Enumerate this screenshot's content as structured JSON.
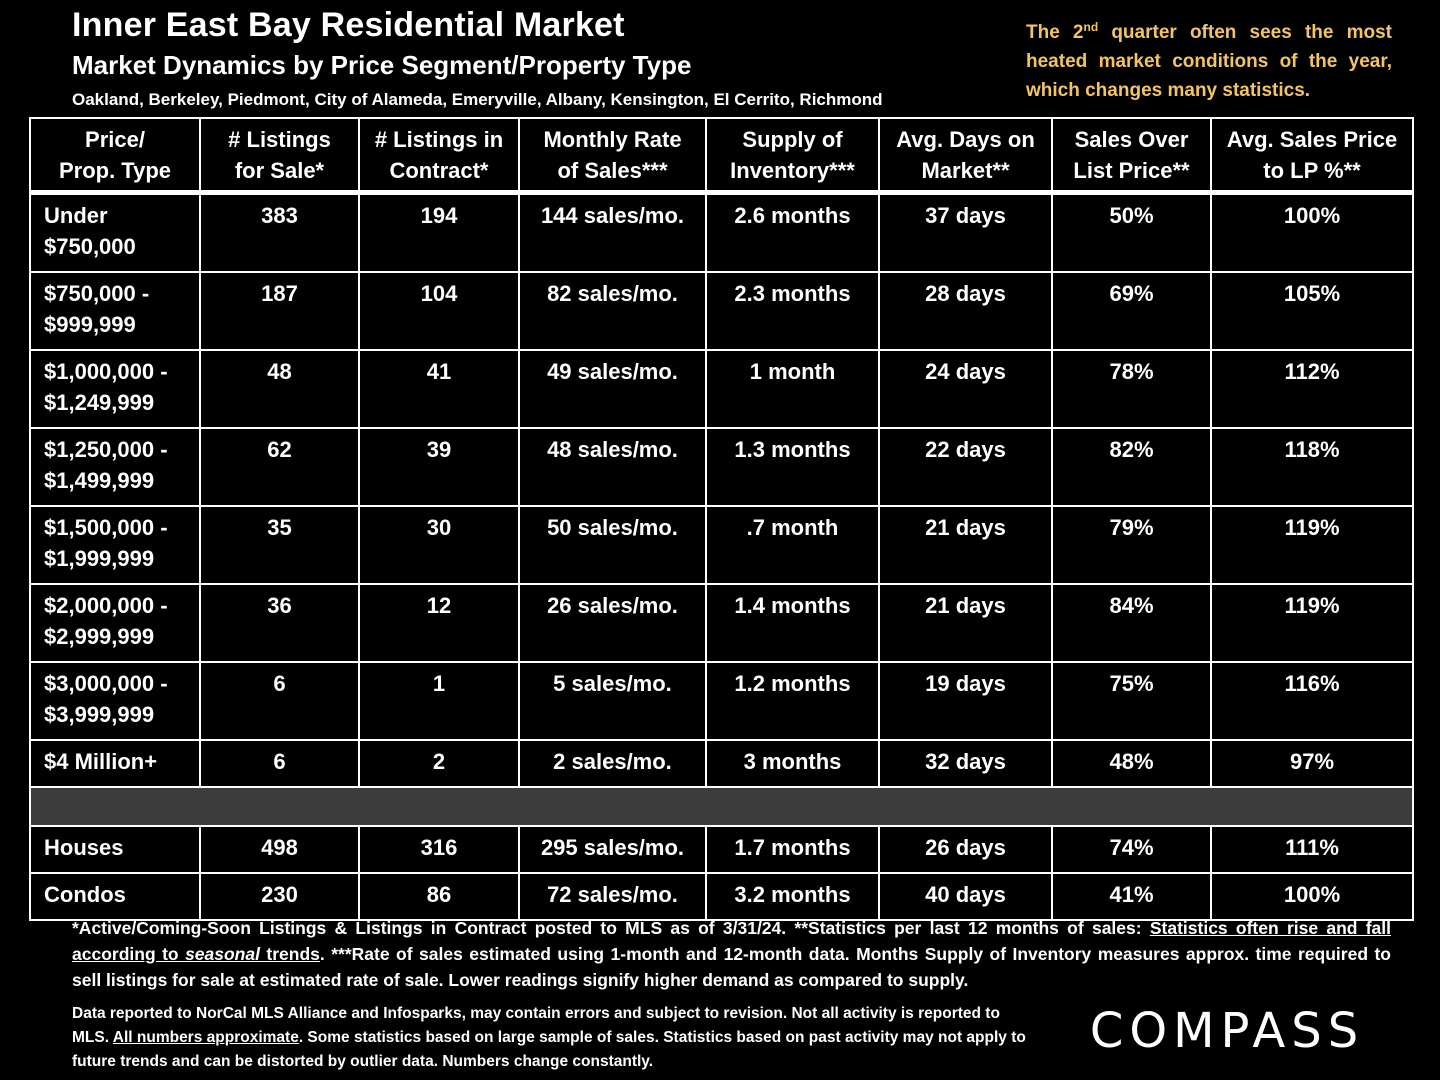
{
  "header": {
    "title": "Inner East Bay Residential Market",
    "subtitle": "Market Dynamics by Price Segment/Property Type",
    "cities": "Oakland, Berkeley, Piedmont, City of Alameda, Emeryville, Albany, Kensington, El Cerrito, Richmond"
  },
  "note": {
    "pre": "The 2",
    "sup": "nd",
    "post": " quarter often sees the most heated market conditions of the year, which changes many statistics."
  },
  "table": {
    "headers": [
      [
        "Price/",
        "Prop. Type"
      ],
      [
        "# Listings",
        "for Sale*"
      ],
      [
        "# Listings in",
        "Contract*"
      ],
      [
        "Monthly Rate",
        "of Sales***"
      ],
      [
        "Supply of",
        "Inventory***"
      ],
      [
        "Avg. Days on",
        "Market**"
      ],
      [
        "Sales Over",
        "List Price**"
      ],
      [
        "Avg. Sales Price",
        "to LP %**"
      ]
    ],
    "segments": [
      {
        "label": [
          "Under",
          "$750,000"
        ],
        "listings": "383",
        "contract": "194",
        "rate": "144 sales/mo.",
        "supply": "2.6 months",
        "dom": "37 days",
        "over": "50%",
        "lp": "100%"
      },
      {
        "label": [
          "$750,000 -",
          "$999,999"
        ],
        "listings": "187",
        "contract": "104",
        "rate": "82 sales/mo.",
        "supply": "2.3 months",
        "dom": "28 days",
        "over": "69%",
        "lp": "105%"
      },
      {
        "label": [
          "$1,000,000 -",
          "$1,249,999"
        ],
        "listings": "48",
        "contract": "41",
        "rate": "49 sales/mo.",
        "supply": "1 month",
        "dom": "24 days",
        "over": "78%",
        "lp": "112%"
      },
      {
        "label": [
          "$1,250,000 -",
          "$1,499,999"
        ],
        "listings": "62",
        "contract": "39",
        "rate": "48 sales/mo.",
        "supply": "1.3 months",
        "dom": "22 days",
        "over": "82%",
        "lp": "118%"
      },
      {
        "label": [
          "$1,500,000 -",
          "$1,999,999"
        ],
        "listings": "35",
        "contract": "30",
        "rate": "50 sales/mo.",
        "supply": ".7 month",
        "dom": "21 days",
        "over": "79%",
        "lp": "119%"
      },
      {
        "label": [
          "$2,000,000 -",
          "$2,999,999"
        ],
        "listings": "36",
        "contract": "12",
        "rate": "26 sales/mo.",
        "supply": "1.4 months",
        "dom": "21 days",
        "over": "84%",
        "lp": "119%"
      },
      {
        "label": [
          "$3,000,000 -",
          "$3,999,999"
        ],
        "listings": "6",
        "contract": "1",
        "rate": "5 sales/mo.",
        "supply": "1.2 months",
        "dom": "19 days",
        "over": "75%",
        "lp": "116%"
      },
      {
        "label": [
          "$4 Million+"
        ],
        "listings": "6",
        "contract": "2",
        "rate": "2 sales/mo.",
        "supply": "3 months",
        "dom": "32 days",
        "over": "48%",
        "lp": "97%"
      }
    ],
    "types": [
      {
        "label": "Houses",
        "listings": "498",
        "contract": "316",
        "rate": "295 sales/mo.",
        "supply": "1.7 months",
        "dom": "26 days",
        "over": "74%",
        "lp": "111%"
      },
      {
        "label": "Condos",
        "listings": "230",
        "contract": "86",
        "rate": "72 sales/mo.",
        "supply": "3.2 months",
        "dom": "40 days",
        "over": "41%",
        "lp": "100%"
      }
    ]
  },
  "footnote1": {
    "a": "*Active/Coming-Soon Listings & Listings in Contract posted to MLS as of 3/31/24. **Statistics per last 12 months of sales: ",
    "u1": "Statistics often rise and fall according to ",
    "ui": "seasonal",
    "u2": " trends",
    "b": ".  ***Rate of sales estimated using 1-month and 12-month data. Months Supply of Inventory measures approx. time required to sell listings for sale at estimated rate of sale. Lower readings signify higher demand as compared to supply."
  },
  "footnote2": {
    "a": "Data reported to NorCal MLS Alliance and Infosparks, may contain errors and subject to revision.  Not all activity is reported to MLS. ",
    "u": "All numbers approximate",
    "b": ". Some statistics based on large sample of sales. Statistics based on past activity may not apply to future trends and can be distorted by outlier data. Numbers change constantly."
  },
  "logo": "COMPASS"
}
